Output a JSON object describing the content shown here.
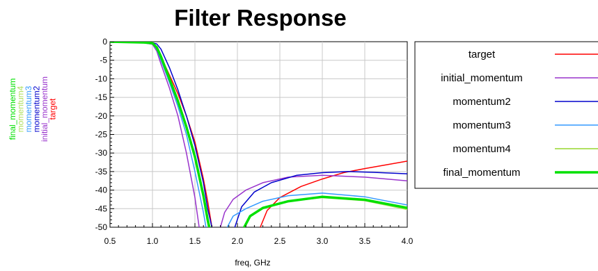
{
  "chart_data": {
    "type": "line",
    "title": "Filter Response",
    "xlabel": "freq, GHz",
    "ylabel_stack": [
      {
        "text": "final_momentum",
        "color": "#00e000"
      },
      {
        "text": "momentum4",
        "color": "#b0e060"
      },
      {
        "text": "momentum3",
        "color": "#3399ff"
      },
      {
        "text": "momentum2",
        "color": "#0000cc"
      },
      {
        "text": "initial_momentum",
        "color": "#9933cc"
      },
      {
        "text": "target",
        "color": "#ff0000"
      }
    ],
    "xlim": [
      0.5,
      4.0
    ],
    "ylim": [
      -50,
      0
    ],
    "xticks": [
      "0.5",
      "1.0",
      "1.5",
      "2.0",
      "2.5",
      "3.0",
      "3.5",
      "4.0"
    ],
    "xtick_values": [
      0.5,
      1.0,
      1.5,
      2.0,
      2.5,
      3.0,
      3.5,
      4.0
    ],
    "yticks": [
      "0",
      "-5",
      "-10",
      "-15",
      "-20",
      "-25",
      "-30",
      "-35",
      "-40",
      "-45",
      "-50"
    ],
    "ytick_values": [
      0,
      -5,
      -10,
      -15,
      -20,
      -25,
      -30,
      -35,
      -40,
      -45,
      -50
    ],
    "grid": true,
    "legend_position": "right",
    "series": [
      {
        "name": "target",
        "color": "#ff0000",
        "width": 1.5,
        "segments": [
          [
            [
              0.5,
              0
            ],
            [
              0.9,
              -0.3
            ],
            [
              1.0,
              -0.6
            ],
            [
              1.05,
              -1.5
            ],
            [
              1.1,
              -4
            ],
            [
              1.2,
              -9
            ],
            [
              1.3,
              -14
            ],
            [
              1.4,
              -20
            ],
            [
              1.5,
              -27
            ],
            [
              1.6,
              -37
            ],
            [
              1.65,
              -43
            ],
            [
              1.7,
              -50
            ]
          ],
          [
            [
              2.27,
              -50
            ],
            [
              2.35,
              -45.5
            ],
            [
              2.5,
              -42
            ],
            [
              2.75,
              -39
            ],
            [
              3.0,
              -37
            ],
            [
              3.25,
              -35.3
            ],
            [
              3.5,
              -34.2
            ],
            [
              3.75,
              -33.2
            ],
            [
              4.0,
              -32.2
            ]
          ]
        ]
      },
      {
        "name": "initial_momentum",
        "color": "#9933cc",
        "width": 1.5,
        "segments": [
          [
            [
              0.5,
              0
            ],
            [
              0.9,
              -0.3
            ],
            [
              1.0,
              -0.7
            ],
            [
              1.05,
              -2.5
            ],
            [
              1.1,
              -6
            ],
            [
              1.2,
              -12.5
            ],
            [
              1.3,
              -20
            ],
            [
              1.4,
              -30
            ],
            [
              1.5,
              -42
            ],
            [
              1.55,
              -50
            ]
          ],
          [
            [
              1.8,
              -50
            ],
            [
              1.85,
              -46
            ],
            [
              1.95,
              -42.5
            ],
            [
              2.1,
              -40
            ],
            [
              2.3,
              -38
            ],
            [
              2.6,
              -36.5
            ],
            [
              3.0,
              -36
            ],
            [
              3.5,
              -36.5
            ],
            [
              4.0,
              -37.5
            ]
          ]
        ]
      },
      {
        "name": "momentum2",
        "color": "#0000cc",
        "width": 1.5,
        "segments": [
          [
            [
              0.5,
              0
            ],
            [
              0.9,
              -0.2
            ],
            [
              1.0,
              -0.3
            ],
            [
              1.05,
              -0.6
            ],
            [
              1.1,
              -2
            ],
            [
              1.2,
              -7
            ],
            [
              1.3,
              -13
            ],
            [
              1.4,
              -20
            ],
            [
              1.5,
              -28
            ],
            [
              1.6,
              -38
            ],
            [
              1.65,
              -45
            ],
            [
              1.7,
              -50
            ]
          ],
          [
            [
              1.97,
              -50
            ],
            [
              2.05,
              -44.5
            ],
            [
              2.2,
              -40.5
            ],
            [
              2.4,
              -38
            ],
            [
              2.7,
              -36
            ],
            [
              3.0,
              -35.3
            ],
            [
              3.3,
              -35
            ],
            [
              3.6,
              -35.2
            ],
            [
              4.0,
              -35.6
            ]
          ]
        ]
      },
      {
        "name": "momentum3",
        "color": "#3399ff",
        "width": 1.5,
        "segments": [
          [
            [
              0.5,
              0
            ],
            [
              0.9,
              -0.3
            ],
            [
              1.0,
              -0.6
            ],
            [
              1.05,
              -2
            ],
            [
              1.1,
              -5
            ],
            [
              1.2,
              -11
            ],
            [
              1.3,
              -17.5
            ],
            [
              1.4,
              -25
            ],
            [
              1.5,
              -35
            ],
            [
              1.6,
              -46
            ],
            [
              1.63,
              -50
            ]
          ],
          [
            [
              1.88,
              -50
            ],
            [
              1.95,
              -47
            ],
            [
              2.1,
              -45
            ],
            [
              2.3,
              -43
            ],
            [
              2.6,
              -41.5
            ],
            [
              3.0,
              -40.8
            ],
            [
              3.5,
              -41.8
            ],
            [
              4.0,
              -44
            ]
          ]
        ]
      },
      {
        "name": "momentum4",
        "color": "#b0e060",
        "width": 2,
        "segments": [
          [
            [
              0.5,
              0
            ],
            [
              0.9,
              -0.2
            ],
            [
              1.0,
              -0.4
            ],
            [
              1.05,
              -1.5
            ],
            [
              1.1,
              -4
            ],
            [
              1.2,
              -10
            ],
            [
              1.3,
              -16
            ],
            [
              1.4,
              -23
            ],
            [
              1.5,
              -31
            ],
            [
              1.6,
              -42
            ],
            [
              1.66,
              -50
            ]
          ],
          [
            [
              2.08,
              -50
            ],
            [
              2.15,
              -47
            ],
            [
              2.3,
              -45
            ],
            [
              2.6,
              -43
            ],
            [
              3.0,
              -42
            ],
            [
              3.5,
              -42.8
            ],
            [
              4.0,
              -45.2
            ]
          ]
        ]
      },
      {
        "name": "final_momentum",
        "color": "#00e000",
        "width": 3.5,
        "segments": [
          [
            [
              0.5,
              0
            ],
            [
              0.9,
              -0.2
            ],
            [
              1.0,
              -0.4
            ],
            [
              1.05,
              -1.5
            ],
            [
              1.1,
              -4
            ],
            [
              1.2,
              -10
            ],
            [
              1.3,
              -16
            ],
            [
              1.4,
              -23
            ],
            [
              1.5,
              -31
            ],
            [
              1.6,
              -41.5
            ],
            [
              1.65,
              -48
            ],
            [
              1.67,
              -50
            ]
          ],
          [
            [
              2.08,
              -50
            ],
            [
              2.15,
              -47
            ],
            [
              2.3,
              -44.8
            ],
            [
              2.6,
              -43
            ],
            [
              3.0,
              -41.8
            ],
            [
              3.5,
              -42.6
            ],
            [
              4.0,
              -44.8
            ]
          ]
        ]
      }
    ]
  }
}
